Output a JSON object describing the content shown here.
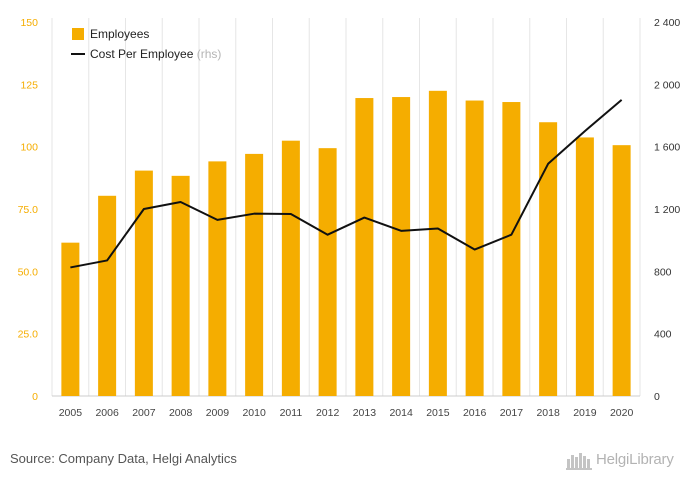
{
  "chart_data": {
    "type": "bar+line",
    "categories": [
      "2005",
      "2006",
      "2007",
      "2008",
      "2009",
      "2010",
      "2011",
      "2012",
      "2013",
      "2014",
      "2015",
      "2016",
      "2017",
      "2018",
      "2019",
      "2020"
    ],
    "series": [
      {
        "name": "Employees",
        "type": "bar",
        "axis": "left",
        "color": "#F5AD00",
        "values": [
          61.5,
          80.3,
          90.4,
          88.3,
          94.1,
          97.1,
          102.4,
          99.4,
          119.5,
          119.9,
          122.4,
          118.5,
          117.9,
          109.8,
          103.7,
          100.6
        ]
      },
      {
        "name": "Cost Per Employee",
        "axis_note": "(rhs)",
        "type": "line",
        "axis": "right",
        "color": "#111111",
        "values": [
          825,
          870,
          1200,
          1245,
          1130,
          1170,
          1168,
          1035,
          1145,
          1060,
          1075,
          940,
          1035,
          1490,
          1700,
          1900
        ]
      }
    ],
    "left_axis": {
      "min": 0,
      "max": 150,
      "ticks": [
        0,
        25.0,
        50.0,
        75.0,
        100,
        125,
        150
      ],
      "tick_labels": [
        "0",
        "25.0",
        "50.0",
        "75.0",
        "100",
        "125",
        "150"
      ],
      "label_color": "#F5AD00"
    },
    "right_axis": {
      "min": 0,
      "max": 2400,
      "ticks": [
        0,
        400,
        800,
        1200,
        1600,
        2000,
        2400
      ],
      "tick_labels": [
        "0",
        "400",
        "800",
        "1 200",
        "1 600",
        "2 000",
        "2 400"
      ]
    },
    "legend_position": "top-left",
    "grid": "vertical"
  },
  "footer": {
    "source": "Source: Company Data, Helgi Analytics",
    "brand": "HelgiLibrary"
  },
  "colors": {
    "bar": "#F5AD00",
    "line": "#111111",
    "grid": "#e6e6e6"
  }
}
